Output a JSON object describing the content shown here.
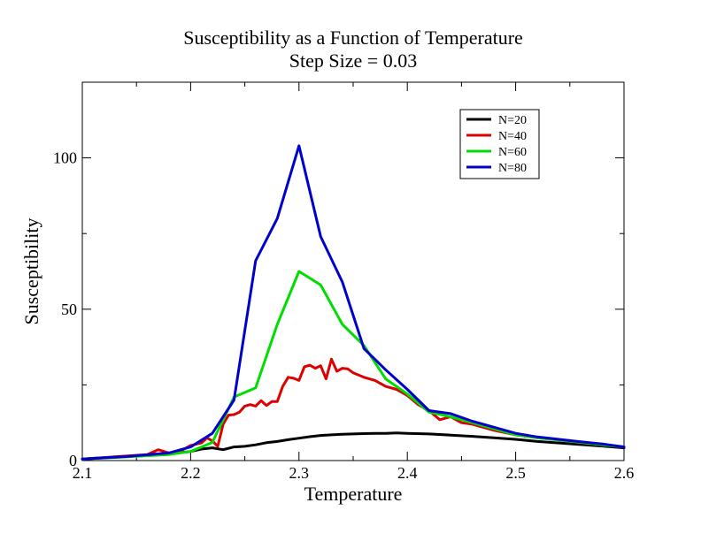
{
  "chart_data": {
    "type": "line",
    "title": "Susceptibility as a Function of Temperature",
    "subtitle": "Step Size = 0.03",
    "xlabel": "Temperature",
    "ylabel": "Susceptibility",
    "xlim": [
      2.1,
      2.6
    ],
    "ylim": [
      0,
      125
    ],
    "xticks": [
      {
        "value": 2.1,
        "label": "2.1"
      },
      {
        "value": 2.2,
        "label": "2.2"
      },
      {
        "value": 2.3,
        "label": "2.3"
      },
      {
        "value": 2.4,
        "label": "2.4"
      },
      {
        "value": 2.5,
        "label": "2.5"
      },
      {
        "value": 2.6,
        "label": "2.6"
      }
    ],
    "yticks": [
      {
        "value": 0,
        "label": "0"
      },
      {
        "value": 50,
        "label": "50"
      },
      {
        "value": 100,
        "label": "100"
      }
    ],
    "grid": false,
    "legend_position": "top-right",
    "series": [
      {
        "name": "N=20",
        "color": "#000000",
        "points": [
          [
            2.1,
            0.5
          ],
          [
            2.12,
            0.9
          ],
          [
            2.14,
            1.3
          ],
          [
            2.16,
            1.7
          ],
          [
            2.18,
            2.2
          ],
          [
            2.2,
            3.0
          ],
          [
            2.21,
            3.8
          ],
          [
            2.22,
            4.2
          ],
          [
            2.23,
            3.6
          ],
          [
            2.24,
            4.5
          ],
          [
            2.25,
            4.7
          ],
          [
            2.26,
            5.2
          ],
          [
            2.27,
            5.9
          ],
          [
            2.28,
            6.3
          ],
          [
            2.29,
            6.9
          ],
          [
            2.3,
            7.4
          ],
          [
            2.31,
            7.9
          ],
          [
            2.32,
            8.3
          ],
          [
            2.33,
            8.5
          ],
          [
            2.34,
            8.7
          ],
          [
            2.35,
            8.8
          ],
          [
            2.36,
            8.9
          ],
          [
            2.37,
            9.0
          ],
          [
            2.38,
            9.0
          ],
          [
            2.39,
            9.1
          ],
          [
            2.4,
            9.0
          ],
          [
            2.42,
            8.8
          ],
          [
            2.44,
            8.4
          ],
          [
            2.46,
            8.0
          ],
          [
            2.48,
            7.5
          ],
          [
            2.5,
            7.0
          ],
          [
            2.52,
            6.3
          ],
          [
            2.54,
            5.8
          ],
          [
            2.56,
            5.3
          ],
          [
            2.58,
            4.8
          ],
          [
            2.6,
            4.2
          ]
        ]
      },
      {
        "name": "N=40",
        "color": "#dd0000",
        "points": [
          [
            2.1,
            0.5
          ],
          [
            2.12,
            1.0
          ],
          [
            2.14,
            1.5
          ],
          [
            2.16,
            2.0
          ],
          [
            2.17,
            3.6
          ],
          [
            2.18,
            2.5
          ],
          [
            2.19,
            3.0
          ],
          [
            2.2,
            5.0
          ],
          [
            2.21,
            5.8
          ],
          [
            2.215,
            7.5
          ],
          [
            2.22,
            6.5
          ],
          [
            2.225,
            4.7
          ],
          [
            2.23,
            12.0
          ],
          [
            2.235,
            15.0
          ],
          [
            2.24,
            15.2
          ],
          [
            2.245,
            16.0
          ],
          [
            2.25,
            18.0
          ],
          [
            2.255,
            18.5
          ],
          [
            2.26,
            18.0
          ],
          [
            2.265,
            19.8
          ],
          [
            2.27,
            18.2
          ],
          [
            2.275,
            19.5
          ],
          [
            2.28,
            19.5
          ],
          [
            2.285,
            24.5
          ],
          [
            2.29,
            27.5
          ],
          [
            2.295,
            27.2
          ],
          [
            2.3,
            26.5
          ],
          [
            2.305,
            31.0
          ],
          [
            2.31,
            31.5
          ],
          [
            2.315,
            30.5
          ],
          [
            2.32,
            31.3
          ],
          [
            2.325,
            27.0
          ],
          [
            2.33,
            33.5
          ],
          [
            2.335,
            29.5
          ],
          [
            2.34,
            30.5
          ],
          [
            2.345,
            30.3
          ],
          [
            2.35,
            29.0
          ],
          [
            2.36,
            27.5
          ],
          [
            2.37,
            26.5
          ],
          [
            2.38,
            24.5
          ],
          [
            2.39,
            23.5
          ],
          [
            2.4,
            21.5
          ],
          [
            2.41,
            18.5
          ],
          [
            2.42,
            16.5
          ],
          [
            2.43,
            13.5
          ],
          [
            2.44,
            14.5
          ],
          [
            2.45,
            12.5
          ],
          [
            2.46,
            12.0
          ],
          [
            2.48,
            10.0
          ],
          [
            2.5,
            8.5
          ],
          [
            2.52,
            7.5
          ],
          [
            2.54,
            6.8
          ],
          [
            2.56,
            6.0
          ],
          [
            2.58,
            5.3
          ],
          [
            2.6,
            4.5
          ]
        ]
      },
      {
        "name": "N=60",
        "color": "#00dd00",
        "points": [
          [
            2.1,
            0.5
          ],
          [
            2.14,
            1.2
          ],
          [
            2.18,
            2.0
          ],
          [
            2.2,
            3.0
          ],
          [
            2.22,
            6.0
          ],
          [
            2.24,
            21.0
          ],
          [
            2.26,
            24.0
          ],
          [
            2.28,
            45.0
          ],
          [
            2.3,
            62.5
          ],
          [
            2.32,
            58.0
          ],
          [
            2.34,
            45.0
          ],
          [
            2.36,
            38.0
          ],
          [
            2.38,
            27.0
          ],
          [
            2.4,
            22.0
          ],
          [
            2.42,
            16.0
          ],
          [
            2.44,
            14.5
          ],
          [
            2.46,
            12.5
          ],
          [
            2.48,
            10.5
          ],
          [
            2.5,
            8.5
          ],
          [
            2.52,
            7.5
          ],
          [
            2.54,
            6.8
          ],
          [
            2.56,
            6.0
          ],
          [
            2.58,
            5.2
          ],
          [
            2.6,
            4.5
          ]
        ]
      },
      {
        "name": "N=80",
        "color": "#0000cc",
        "points": [
          [
            2.1,
            0.5
          ],
          [
            2.14,
            1.3
          ],
          [
            2.18,
            2.5
          ],
          [
            2.2,
            4.5
          ],
          [
            2.22,
            9.0
          ],
          [
            2.24,
            20.0
          ],
          [
            2.26,
            66.0
          ],
          [
            2.28,
            80.0
          ],
          [
            2.3,
            104.0
          ],
          [
            2.32,
            74.0
          ],
          [
            2.34,
            59.0
          ],
          [
            2.36,
            37.0
          ],
          [
            2.38,
            30.0
          ],
          [
            2.4,
            23.5
          ],
          [
            2.42,
            16.5
          ],
          [
            2.44,
            15.5
          ],
          [
            2.46,
            13.0
          ],
          [
            2.48,
            11.0
          ],
          [
            2.5,
            9.0
          ],
          [
            2.52,
            7.8
          ],
          [
            2.54,
            7.0
          ],
          [
            2.56,
            6.2
          ],
          [
            2.58,
            5.5
          ],
          [
            2.6,
            4.5
          ]
        ]
      }
    ]
  }
}
